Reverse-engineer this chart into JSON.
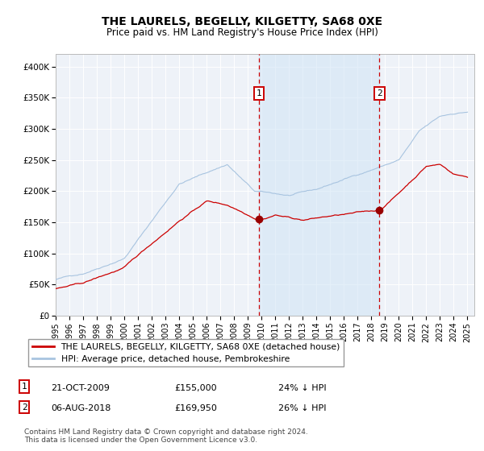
{
  "title": "THE LAURELS, BEGELLY, KILGETTY, SA68 0XE",
  "subtitle": "Price paid vs. HM Land Registry's House Price Index (HPI)",
  "title_fontsize": 10,
  "subtitle_fontsize": 8.5,
  "background_color": "#ffffff",
  "plot_bg_color": "#eef2f8",
  "hpi_color": "#a8c4e0",
  "property_color": "#cc0000",
  "highlight_fill": "#d0e4f5",
  "highlight_alpha": 0.55,
  "marker_color": "#990000",
  "dashed_line_color": "#cc0000",
  "purchase1_x": 2009.81,
  "purchase1_y": 155000,
  "purchase1_label": "1",
  "purchase2_x": 2018.59,
  "purchase2_y": 169950,
  "purchase2_label": "2",
  "ylim": [
    0,
    420000
  ],
  "xlim_start": 1995,
  "xlim_end": 2025.5,
  "yticks": [
    0,
    50000,
    100000,
    150000,
    200000,
    250000,
    300000,
    350000,
    400000
  ],
  "ytick_labels": [
    "£0",
    "£50K",
    "£100K",
    "£150K",
    "£200K",
    "£250K",
    "£300K",
    "£350K",
    "£400K"
  ],
  "xticks": [
    1995,
    1996,
    1997,
    1998,
    1999,
    2000,
    2001,
    2002,
    2003,
    2004,
    2005,
    2006,
    2007,
    2008,
    2009,
    2010,
    2011,
    2012,
    2013,
    2014,
    2015,
    2016,
    2017,
    2018,
    2019,
    2020,
    2021,
    2022,
    2023,
    2024,
    2025
  ],
  "legend_property_label": "THE LAURELS, BEGELLY, KILGETTY, SA68 0XE (detached house)",
  "legend_hpi_label": "HPI: Average price, detached house, Pembrokeshire",
  "note1_label": "1",
  "note1_date": "21-OCT-2009",
  "note1_price": "£155,000",
  "note1_hpi": "24% ↓ HPI",
  "note2_label": "2",
  "note2_date": "06-AUG-2018",
  "note2_price": "£169,950",
  "note2_hpi": "26% ↓ HPI",
  "footer": "Contains HM Land Registry data © Crown copyright and database right 2024.\nThis data is licensed under the Open Government Licence v3.0."
}
